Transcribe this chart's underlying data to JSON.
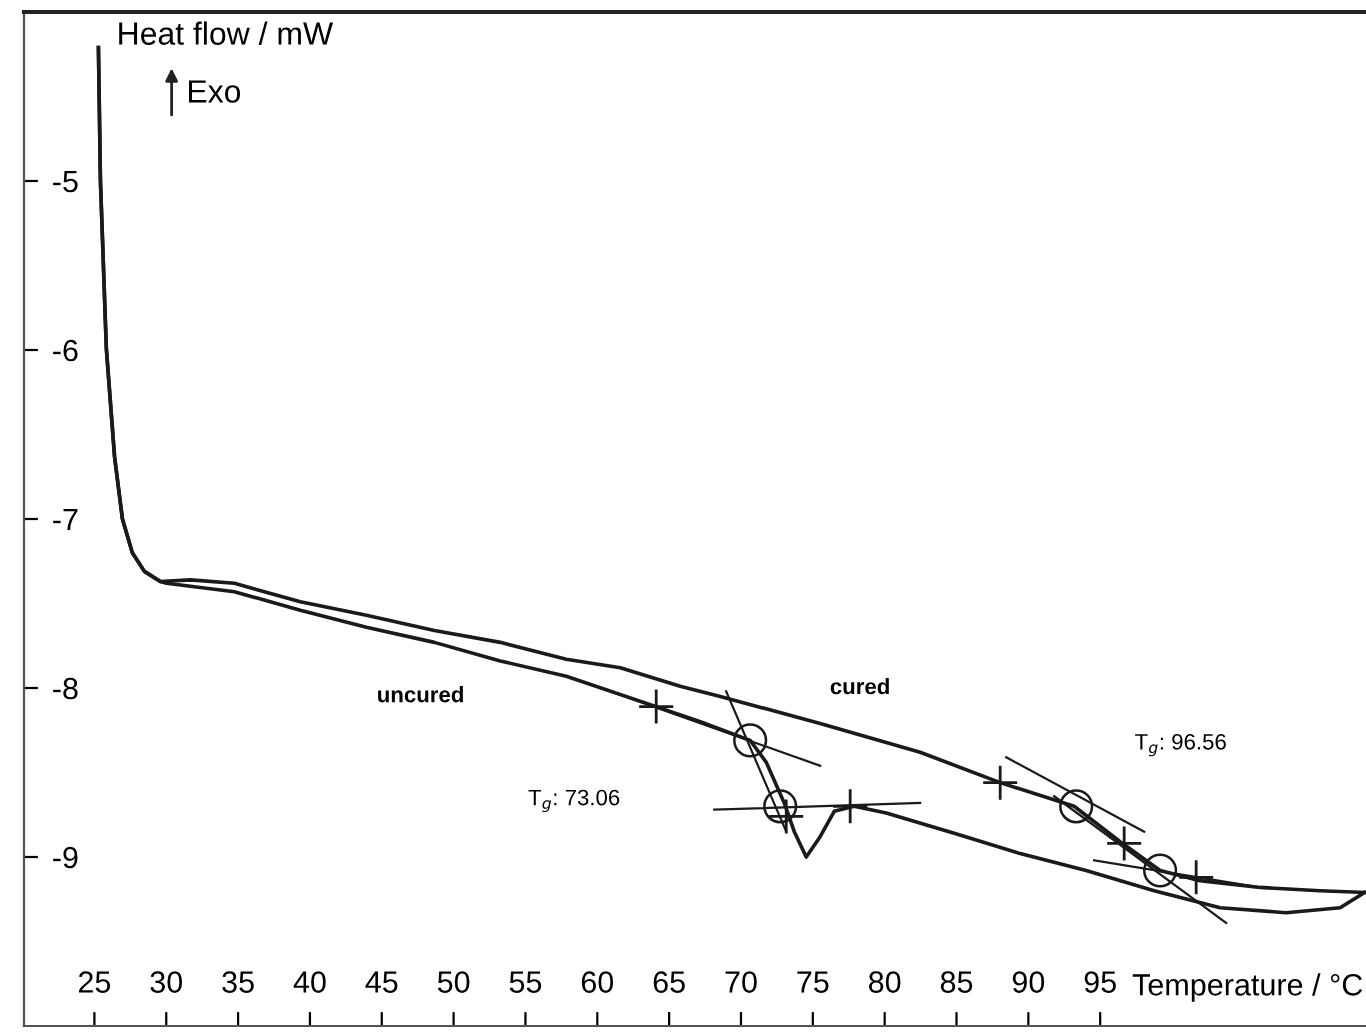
{
  "chart_data": {
    "type": "line",
    "xlabel": "Temperature / °C",
    "ylabel": "Heat flow / mW",
    "xlim": [
      20.1,
      113.5
    ],
    "ylim": [
      -10,
      -4
    ],
    "xticks": [
      25,
      30,
      35,
      40,
      45,
      50,
      55,
      60,
      65,
      70,
      75,
      80,
      85,
      90,
      95
    ],
    "yticks": [
      -9,
      -8,
      -7,
      -6,
      -5
    ],
    "grid": false,
    "legend": false,
    "annotations": [
      "Exo",
      "uncured",
      "cured",
      "T$_{g}$: 73.06",
      "T$_{g}$: 96.56"
    ],
    "series": [
      {
        "color": "#1a1a1a",
        "line_style": "solid",
        "x": [
          25.28,
          25.42,
          25.83,
          26.4,
          26.95,
          27.64,
          28.48,
          29.59,
          31.68,
          34.74,
          39.33,
          43.93,
          48.66,
          53.25,
          57.84,
          61.6,
          65.77,
          68.56,
          75.51,
          82.47,
          88.04,
          93.19,
          96.39,
          99.17,
          101.95,
          106.13,
          110.3,
          113.4
        ],
        "values": [
          -4.21,
          -5.0,
          -5.99,
          -6.63,
          -7.0,
          -7.2,
          -7.31,
          -7.37,
          -7.36,
          -7.38,
          -7.49,
          -7.57,
          -7.66,
          -7.73,
          -7.83,
          -7.88,
          -7.99,
          -8.05,
          -8.21,
          -8.38,
          -8.56,
          -8.7,
          -8.91,
          -9.08,
          -9.14,
          -9.18,
          -9.2,
          -9.21
        ]
      },
      {
        "color": "#1a1a1a",
        "line_style": "solid",
        "x": [
          25.28,
          25.42,
          25.83,
          26.4,
          26.95,
          27.64,
          28.48,
          29.59,
          30.01,
          34.74,
          39.33,
          43.93,
          48.66,
          53.25,
          57.84,
          64.1,
          67.17,
          70.64,
          71.76,
          73.01,
          73.71,
          74.54,
          75.51,
          76.49,
          77.88,
          80.11,
          84.84,
          89.43,
          94.02,
          98.76,
          103.35,
          107.94,
          111.7,
          113.4
        ],
        "values": [
          -4.21,
          -5.0,
          -5.99,
          -6.63,
          -7.0,
          -7.2,
          -7.31,
          -7.37,
          -7.38,
          -7.43,
          -7.54,
          -7.64,
          -7.73,
          -7.84,
          -7.93,
          -8.11,
          -8.2,
          -8.31,
          -8.44,
          -8.68,
          -8.85,
          -9.0,
          -8.88,
          -8.73,
          -8.7,
          -8.74,
          -8.86,
          -8.98,
          -9.08,
          -9.2,
          -9.3,
          -9.33,
          -9.3,
          -9.21
        ]
      },
      {
        "color": "#1a1a1a",
        "line_style": "solid",
        "x": [
          59.23,
          75.51
        ],
        "values": [
          -7.97,
          -8.46
        ]
      },
      {
        "color": "#1a1a1a",
        "line_style": "solid",
        "x": [
          68.97,
          73.15
        ],
        "values": [
          -8.02,
          -8.85
        ]
      },
      {
        "color": "#1a1a1a",
        "line_style": "solid",
        "x": [
          68.14,
          82.47
        ],
        "values": [
          -8.72,
          -8.68
        ]
      },
      {
        "color": "#1a1a1a",
        "line_style": "solid",
        "x": [
          88.46,
          98.06
        ],
        "values": [
          -8.41,
          -8.85
        ]
      },
      {
        "color": "#1a1a1a",
        "line_style": "solid",
        "x": [
          91.8,
          103.77
        ],
        "values": [
          -8.64,
          -9.39
        ]
      },
      {
        "color": "#1a1a1a",
        "line_style": "solid",
        "x": [
          94.58,
          106.13
        ],
        "values": [
          -9.02,
          -9.18
        ]
      },
      {
        "type": "scatter",
        "marker": "cross",
        "color": "#1a1a1a",
        "x": [
          64.1,
          73.15,
          77.6,
          88.04,
          96.67,
          101.68
        ],
        "values": [
          -8.11,
          -8.76,
          -8.7,
          -8.56,
          -8.92,
          -9.12
        ]
      },
      {
        "type": "scatter",
        "marker": "circle",
        "color": "#1a1a1a",
        "x": [
          70.64,
          72.73,
          93.33,
          99.17
        ],
        "values": [
          -8.31,
          -8.7,
          -8.7,
          -9.08
        ]
      }
    ]
  }
}
